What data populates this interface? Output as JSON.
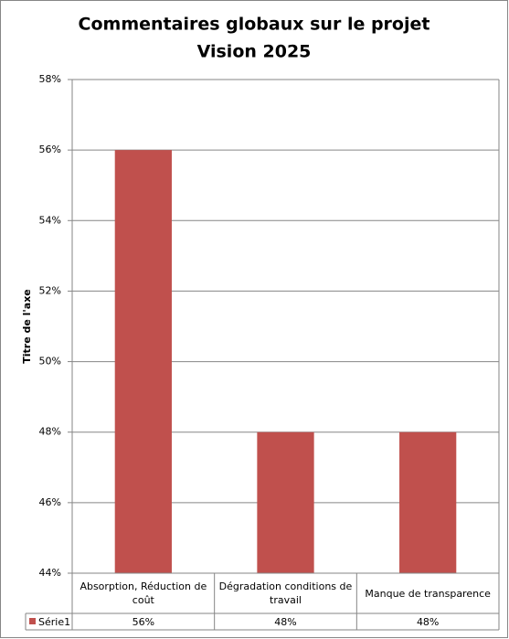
{
  "chart_data": {
    "type": "bar",
    "title": [
      "Commentaires globaux sur le projet",
      "Vision 2025"
    ],
    "y_axis_label": "Titre de l'axe",
    "categories": [
      "Absorption, Réduction de coût",
      "Dégradation conditions de travail",
      "Manque de transparence"
    ],
    "series": [
      {
        "name": "Série1",
        "color": "#c0504d",
        "values": [
          56,
          48,
          48
        ],
        "value_labels": [
          "56%",
          "48%",
          "48%"
        ]
      }
    ],
    "ylim": [
      44,
      58
    ],
    "yticks": [
      {
        "value": 44,
        "label": "44%"
      },
      {
        "value": 46,
        "label": "46%"
      },
      {
        "value": 48,
        "label": "48%"
      },
      {
        "value": 50,
        "label": "50%"
      },
      {
        "value": 52,
        "label": "52%"
      },
      {
        "value": 54,
        "label": "54%"
      },
      {
        "value": 56,
        "label": "56%"
      },
      {
        "value": 58,
        "label": "58%"
      }
    ],
    "grid": true,
    "data_table": true
  }
}
